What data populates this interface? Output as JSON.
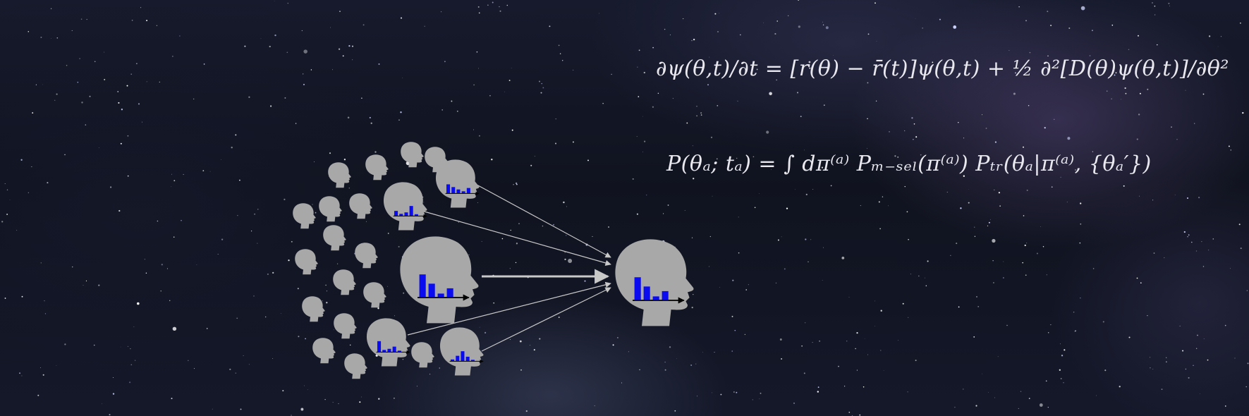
{
  "equations": {
    "fokker_planck": "∂ψ(θ,t)/∂t = [r(θ) − r̄(t)]ψ(θ,t) + ½ ∂²[D(θ)ψ(θ,t)]/∂θ²",
    "transmission": "P(θₐ; tₐ) = ∫ dπ⁽ᵃ⁾ Pₘ₋ₛₑₗ(π⁽ᵃ⁾) Pₜᵣ(θₐ|π⁽ᵃ⁾, {θₐ′})"
  },
  "colors": {
    "head": "#a8a8a8",
    "bar": "#0b0bf0",
    "arrow": "#c8c8c8",
    "text": "#e8e8ee"
  },
  "icons": {
    "head": "head-silhouette-icon",
    "histogram": "bar-histogram-icon"
  },
  "heads": {
    "crowd_count": 17,
    "informed_count": 5,
    "receiver_histogram": [
      0.7,
      0.42,
      0.12,
      0.28
    ]
  }
}
